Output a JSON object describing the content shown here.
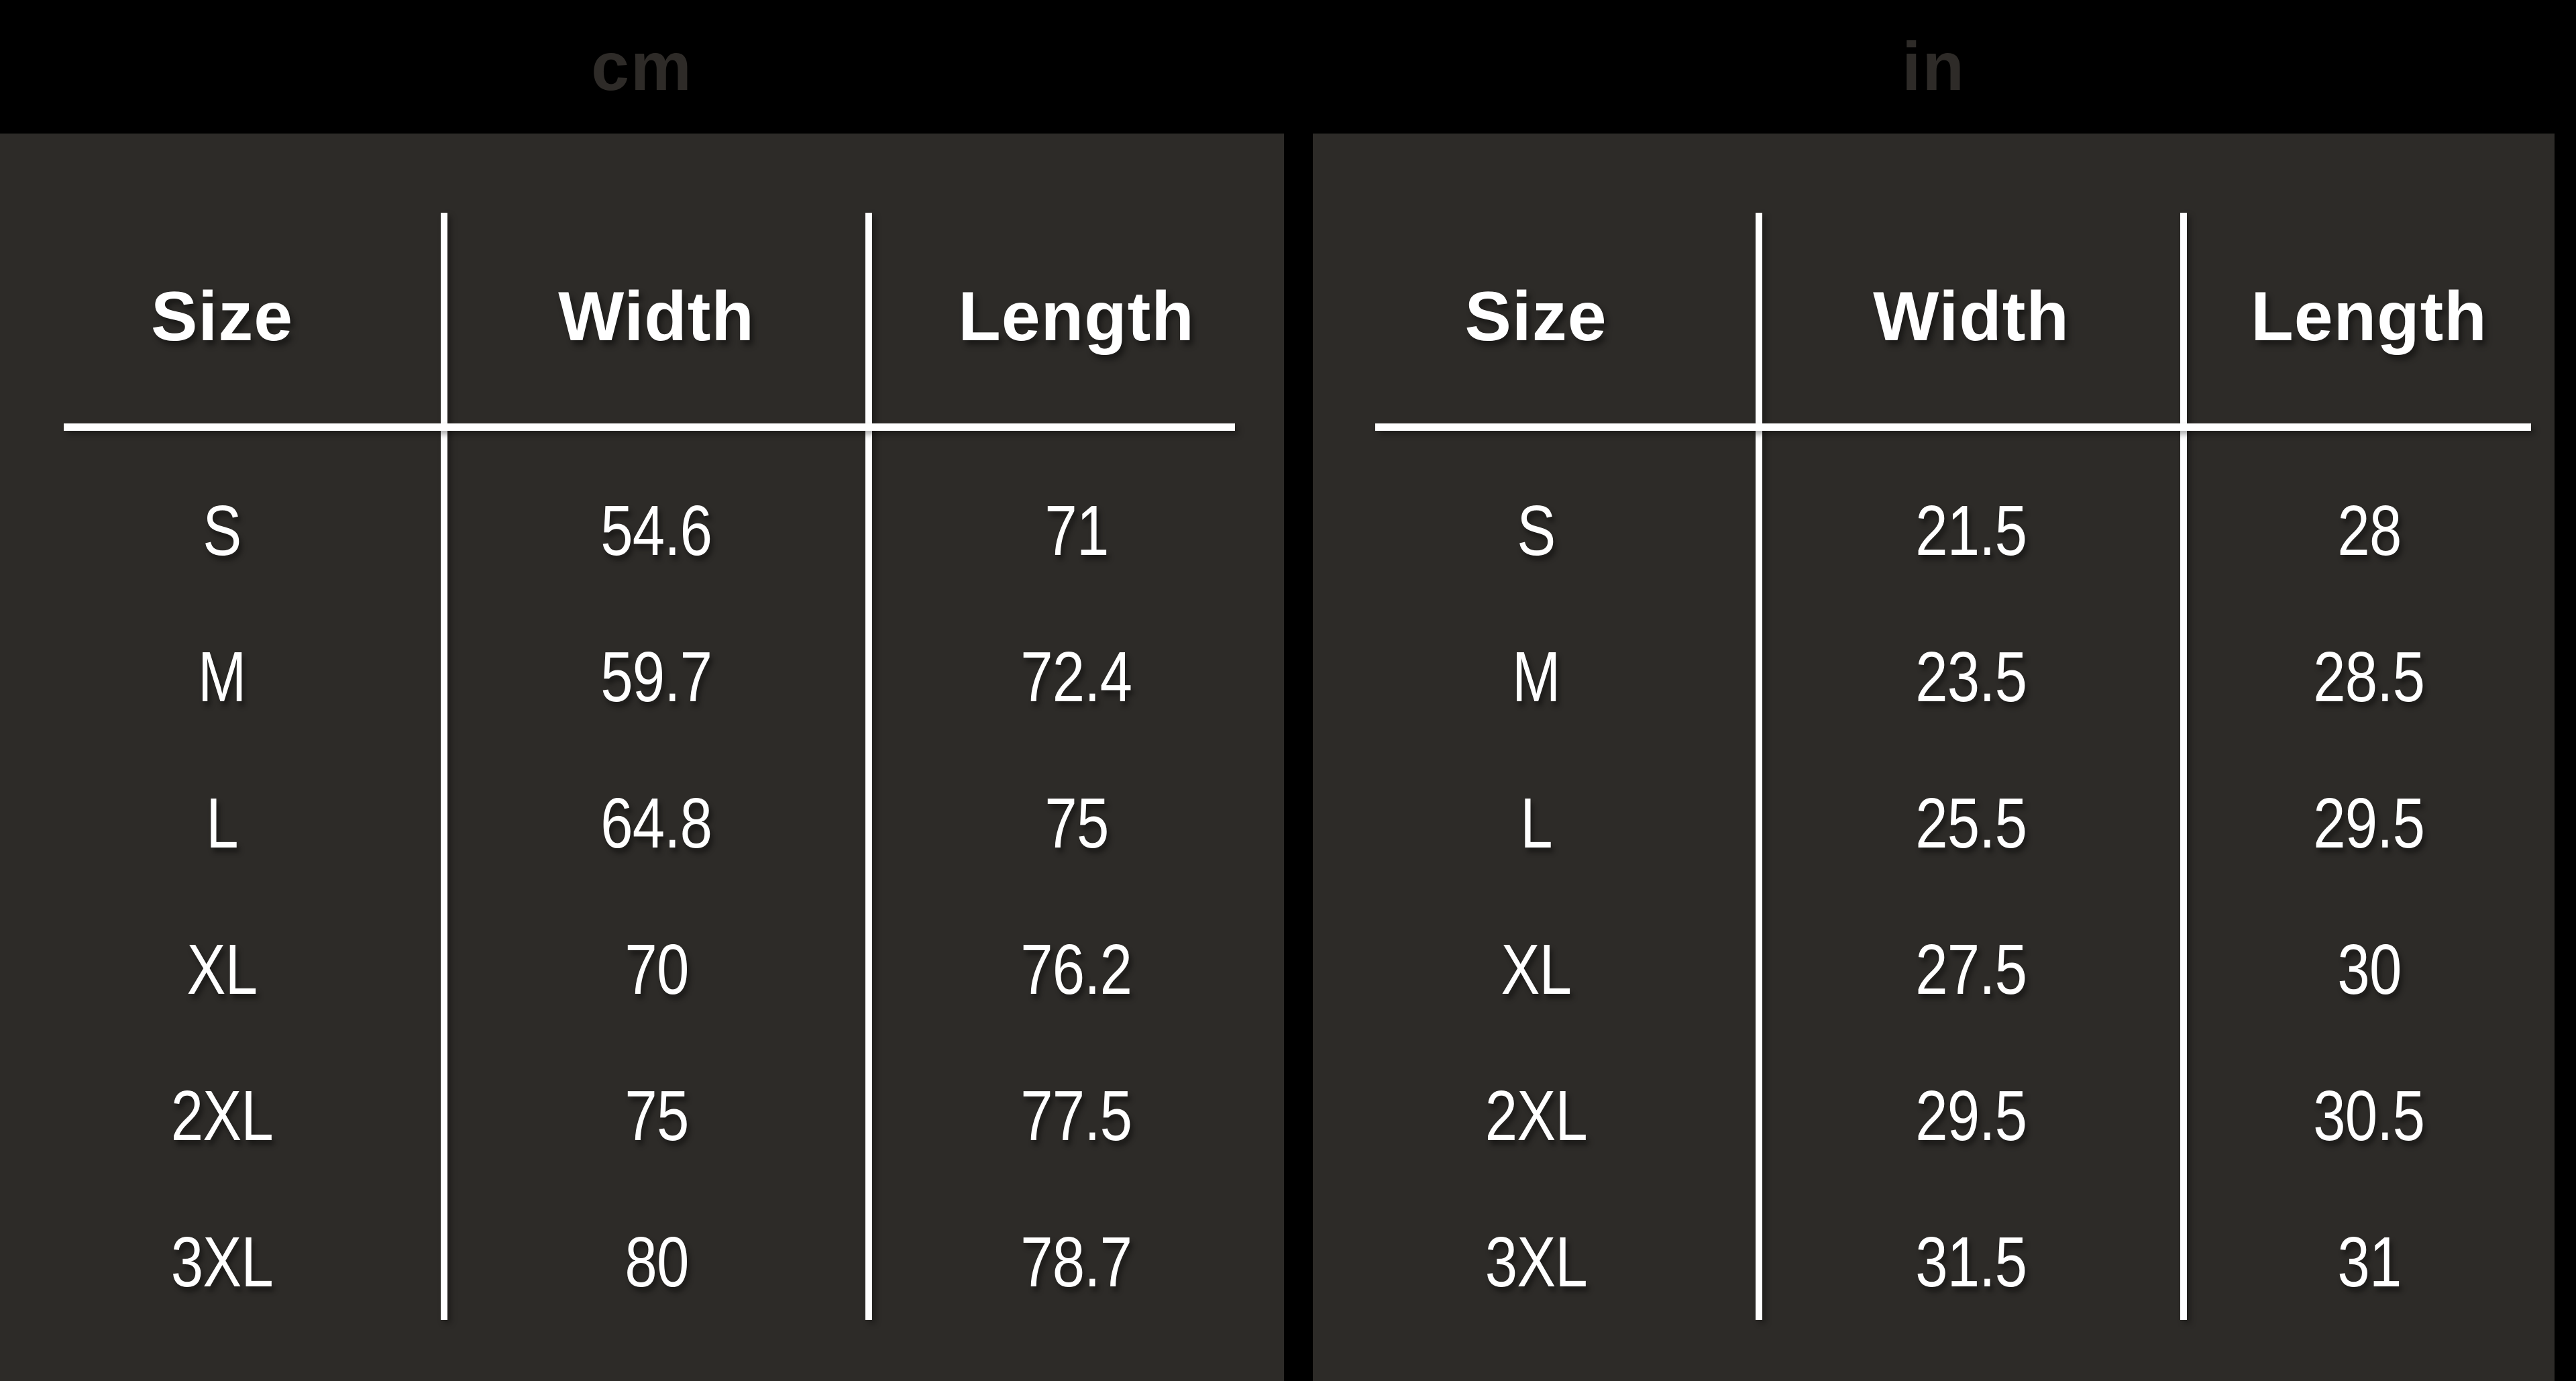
{
  "colors": {
    "background": "#000000",
    "panel": "#2d2b28",
    "unit_label": "#2e2b28",
    "line": "#ffffff",
    "text": "#ffffff"
  },
  "chart_data": [
    {
      "type": "table",
      "title": "cm",
      "columns": [
        "Size",
        "Width",
        "Length"
      ],
      "rows": [
        [
          "S",
          54.6,
          71
        ],
        [
          "M",
          59.7,
          72.4
        ],
        [
          "L",
          64.8,
          75
        ],
        [
          "XL",
          70,
          76.2
        ],
        [
          "2XL",
          75,
          77.5
        ],
        [
          "3XL",
          80,
          78.7
        ]
      ]
    },
    {
      "type": "table",
      "title": "in",
      "columns": [
        "Size",
        "Width",
        "Length"
      ],
      "rows": [
        [
          "S",
          21.5,
          28
        ],
        [
          "M",
          23.5,
          28.5
        ],
        [
          "L",
          25.5,
          29.5
        ],
        [
          "XL",
          27.5,
          30
        ],
        [
          "2XL",
          29.5,
          30.5
        ],
        [
          "3XL",
          31.5,
          31
        ]
      ]
    }
  ]
}
